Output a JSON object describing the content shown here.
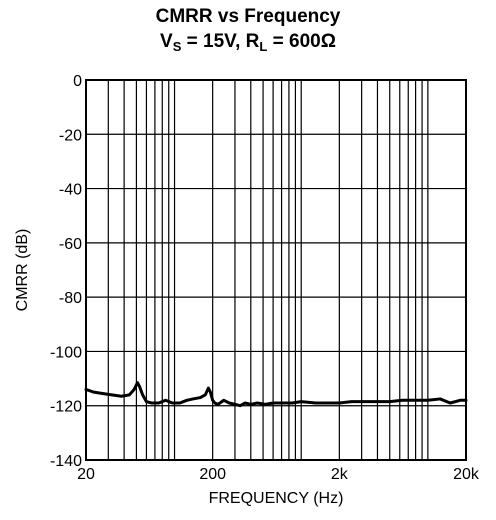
{
  "chart_data": {
    "type": "line",
    "title_main": "CMRR vs Frequency",
    "subtitle": {
      "vs_label": "V",
      "vs_sub": "S",
      "vs_value": " = 15V, ",
      "rl_label": "R",
      "rl_sub": "L",
      "rl_value": " = 600Ω"
    },
    "xlabel": "FREQUENCY (Hz)",
    "ylabel": "CMRR (dB)",
    "x_scale": "log",
    "xlim": [
      20,
      20000
    ],
    "ylim": [
      -140,
      0
    ],
    "x_ticks": [
      20,
      200,
      2000,
      20000
    ],
    "x_tick_labels": [
      "20",
      "200",
      "2k",
      "20k"
    ],
    "y_ticks": [
      0,
      -20,
      -40,
      -60,
      -80,
      -100,
      -120,
      -140
    ],
    "y_tick_labels": [
      "0",
      "-20",
      "-40",
      "-60",
      "-80",
      "-100",
      "-120",
      "-140"
    ],
    "grid": true,
    "color": "#000000",
    "series": [
      {
        "x": [
          20,
          23,
          27,
          32,
          38,
          44,
          48,
          51,
          53,
          56,
          60,
          66,
          75,
          85,
          96,
          110,
          125,
          140,
          160,
          175,
          185,
          192,
          200,
          208,
          220,
          245,
          270,
          300,
          330,
          360,
          400,
          450,
          520,
          600,
          700,
          850,
          1000,
          1300,
          1700,
          2000,
          2500,
          3200,
          4000,
          5000,
          6300,
          8000,
          10000,
          12500,
          15000,
          18000,
          20000
        ],
        "y": [
          -114,
          -115,
          -115.5,
          -116,
          -116.5,
          -116,
          -114,
          -111.5,
          -113,
          -116,
          -118.5,
          -119,
          -119,
          -118,
          -119,
          -119,
          -118,
          -117.5,
          -117,
          -116,
          -113.5,
          -115,
          -118,
          -119,
          -119.5,
          -118,
          -119,
          -119.5,
          -120,
          -119,
          -119.5,
          -119,
          -119.5,
          -119,
          -119,
          -119,
          -118.5,
          -119,
          -119,
          -119,
          -118.5,
          -118.5,
          -118.5,
          -118.5,
          -118,
          -118,
          -118,
          -117.5,
          -119,
          -118,
          -118
        ]
      }
    ]
  }
}
